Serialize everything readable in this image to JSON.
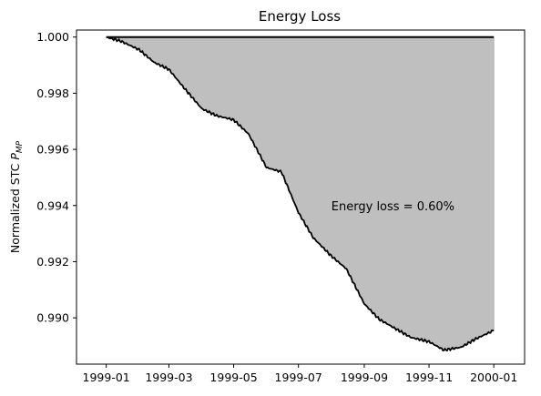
{
  "chart_data": {
    "type": "area",
    "title": "Energy Loss",
    "ylabel_prefix": "Normalized STC ",
    "ylabel_symbol": "P",
    "ylabel_subscript": "MP",
    "xlabel": "",
    "x_tick_labels": [
      "1999-01",
      "1999-03",
      "1999-05",
      "1999-07",
      "1999-09",
      "1999-11",
      "2000-01"
    ],
    "y_tick_labels": [
      "1.000",
      "0.998",
      "0.996",
      "0.994",
      "0.992",
      "0.990"
    ],
    "y_ticks": [
      1.0,
      0.998,
      0.996,
      0.994,
      0.992,
      0.99
    ],
    "ylim": [
      0.98835,
      1.00025
    ],
    "annotation": "Energy loss = 0.60%",
    "annotation_x": "1999-08-01",
    "annotation_y": 0.994,
    "reference_line": 1.0,
    "fill_color": "#bfbfbf",
    "line_color": "#000000",
    "series": [
      {
        "x": [
          "1999-01-01",
          "1999-01-15",
          "1999-02-01",
          "1999-02-15",
          "1999-03-01",
          "1999-03-15",
          "1999-04-01",
          "1999-04-15",
          "1999-05-01",
          "1999-05-15",
          "1999-06-01",
          "1999-06-15",
          "1999-07-01",
          "1999-07-15",
          "1999-08-01",
          "1999-08-15",
          "1999-09-01",
          "1999-09-15",
          "1999-10-01",
          "1999-10-15",
          "1999-11-01",
          "1999-11-15",
          "1999-12-01",
          "1999-12-15",
          "2000-01-01"
        ],
        "y": [
          1.0,
          0.99985,
          0.99955,
          0.9991,
          0.99885,
          0.9982,
          0.99745,
          0.9972,
          0.99705,
          0.99655,
          0.99535,
          0.9952,
          0.99375,
          0.99285,
          0.9922,
          0.99175,
          0.9905,
          0.98995,
          0.9896,
          0.9893,
          0.98915,
          0.98885,
          0.98895,
          0.98925,
          0.98955
        ]
      }
    ]
  }
}
